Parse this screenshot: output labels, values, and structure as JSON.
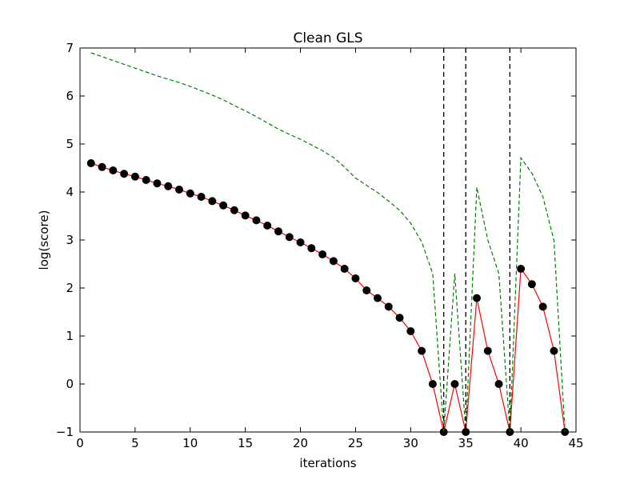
{
  "chart_data": {
    "type": "line",
    "title": "Clean GLS",
    "xlabel": "iterations",
    "ylabel": "log(score)",
    "xlim": [
      0,
      45
    ],
    "ylim": [
      -1,
      7
    ],
    "xticks": [
      0,
      5,
      10,
      15,
      20,
      25,
      30,
      35,
      40,
      45
    ],
    "yticks": [
      -1,
      0,
      1,
      2,
      3,
      4,
      5,
      6,
      7
    ],
    "xtick_labels": [
      "0",
      "5",
      "10",
      "15",
      "20",
      "25",
      "30",
      "35",
      "40",
      "45"
    ],
    "ytick_labels": [
      "−1",
      "0",
      "1",
      "2",
      "3",
      "4",
      "5",
      "6",
      "7"
    ],
    "grid": false,
    "series": [
      {
        "style": "solid-with-markers",
        "color": "#ff0000",
        "marker_color": "#000000",
        "x": [
          1,
          2,
          3,
          4,
          5,
          6,
          7,
          8,
          9,
          10,
          11,
          12,
          13,
          14,
          15,
          16,
          17,
          18,
          19,
          20,
          21,
          22,
          23,
          24,
          25,
          26,
          27,
          28,
          29,
          30,
          31,
          32,
          33,
          34,
          35,
          36,
          37,
          38,
          39,
          40,
          41,
          42,
          43,
          44
        ],
        "y": [
          4.6,
          4.52,
          4.45,
          4.38,
          4.32,
          4.25,
          4.18,
          4.12,
          4.05,
          3.97,
          3.9,
          3.81,
          3.72,
          3.62,
          3.51,
          3.41,
          3.3,
          3.18,
          3.06,
          2.95,
          2.83,
          2.7,
          2.56,
          2.4,
          2.2,
          1.95,
          1.79,
          1.61,
          1.38,
          1.1,
          0.69,
          0.0,
          -1.0,
          0.0,
          -1.0,
          1.79,
          0.69,
          0.0,
          -1.0,
          2.4,
          2.08,
          1.61,
          0.69,
          -1.0
        ]
      },
      {
        "style": "dashed",
        "color": "#008000",
        "x": [
          1,
          2,
          3,
          4,
          5,
          6,
          7,
          8,
          9,
          10,
          11,
          12,
          13,
          14,
          15,
          16,
          17,
          18,
          19,
          20,
          21,
          22,
          23,
          24,
          25,
          26,
          27,
          28,
          29,
          30,
          31,
          32,
          33,
          34,
          35,
          36,
          37,
          38,
          39,
          40,
          41,
          42,
          43,
          44
        ],
        "y": [
          6.9,
          6.82,
          6.74,
          6.66,
          6.58,
          6.5,
          6.42,
          6.35,
          6.28,
          6.2,
          6.11,
          6.02,
          5.92,
          5.8,
          5.69,
          5.57,
          5.44,
          5.31,
          5.2,
          5.1,
          4.98,
          4.86,
          4.72,
          4.52,
          4.29,
          4.14,
          3.99,
          3.81,
          3.62,
          3.35,
          2.96,
          2.3,
          -1.0,
          2.3,
          -1.0,
          4.1,
          3.0,
          2.3,
          -1.0,
          4.71,
          4.39,
          3.9,
          2.99,
          -1.0
        ]
      },
      {
        "style": "dashed-vertical",
        "color": "#000000",
        "x": [
          33,
          35,
          39
        ]
      }
    ]
  }
}
